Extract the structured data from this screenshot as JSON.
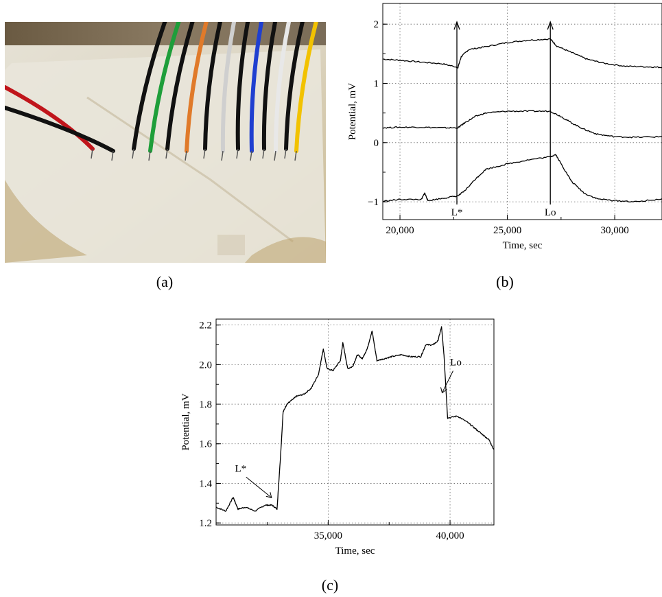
{
  "panels": {
    "a_label": "(a)",
    "b_label": "(b)",
    "c_label": "(c)"
  },
  "photo": {
    "wire_colors": [
      "#c0151b",
      "#111111",
      "#111111",
      "#1e9e3a",
      "#111111",
      "#e07a2a",
      "#111111",
      "#cfcfcf",
      "#111111",
      "#1f3fd0",
      "#111111",
      "#e8e8e8",
      "#111111",
      "#f2c200"
    ]
  },
  "chart_data": [
    {
      "type": "line",
      "panel": "b",
      "title": "",
      "xlabel": "Time, sec",
      "ylabel": "Potential, mV",
      "xlim": [
        19200,
        32200
      ],
      "ylim": [
        -1.3,
        2.35
      ],
      "xticks": [
        20000,
        25000,
        30000
      ],
      "xtick_labels": [
        "20,000",
        "25,000",
        "30,000"
      ],
      "yticks": [
        -1,
        0,
        1,
        2
      ],
      "ytick_labels": [
        "−1",
        "0",
        "1",
        "2"
      ],
      "grid": true,
      "series": [
        {
          "x": [
            19200,
            20000,
            21000,
            22000,
            22700,
            22850,
            23200,
            24000,
            25000,
            26000,
            27000,
            27300,
            28000,
            28700,
            29500,
            30500,
            31500,
            32200
          ],
          "y": [
            1.41,
            1.39,
            1.36,
            1.33,
            1.27,
            1.45,
            1.57,
            1.62,
            1.69,
            1.73,
            1.75,
            1.63,
            1.52,
            1.41,
            1.34,
            1.29,
            1.28,
            1.27
          ]
        },
        {
          "x": [
            19200,
            20000,
            21000,
            22000,
            22700,
            23000,
            23500,
            24000,
            25000,
            26000,
            27000,
            27500,
            28000,
            28600,
            29200,
            30000,
            31000,
            32200
          ],
          "y": [
            0.25,
            0.26,
            0.26,
            0.25,
            0.25,
            0.33,
            0.44,
            0.5,
            0.53,
            0.53,
            0.53,
            0.44,
            0.33,
            0.22,
            0.14,
            0.1,
            0.09,
            0.1
          ]
        },
        {
          "x": [
            19200,
            20000,
            21000,
            21150,
            21300,
            22000,
            22700,
            23000,
            23500,
            24000,
            25000,
            26000,
            27000,
            27250,
            27600,
            28000,
            28600,
            29200,
            30000,
            31000,
            32200
          ],
          "y": [
            -0.99,
            -0.96,
            -0.96,
            -0.85,
            -0.98,
            -0.94,
            -0.9,
            -0.82,
            -0.62,
            -0.45,
            -0.36,
            -0.29,
            -0.24,
            -0.2,
            -0.42,
            -0.66,
            -0.86,
            -0.95,
            -0.98,
            -1.0,
            -0.95
          ]
        }
      ],
      "markers": [
        {
          "label": "L*",
          "x": 22650
        },
        {
          "label": "Lo",
          "x": 27000
        }
      ]
    },
    {
      "type": "line",
      "panel": "c",
      "title": "",
      "xlabel": "Time, sec",
      "ylabel": "Potential, mV",
      "xlim": [
        30400,
        41800
      ],
      "ylim": [
        1.19,
        2.23
      ],
      "xticks": [
        35000,
        40000
      ],
      "xtick_labels": [
        "35,000",
        "40,000"
      ],
      "yticks": [
        1.2,
        1.4,
        1.6,
        1.8,
        2.0,
        2.2
      ],
      "ytick_labels": [
        "1.2",
        "1.4",
        "1.6",
        "1.8",
        "2.0",
        "2.2"
      ],
      "grid": true,
      "series": [
        {
          "x": [
            30400,
            30800,
            31100,
            31300,
            31600,
            32000,
            32400,
            32700,
            32900,
            33050,
            33150,
            33300,
            33500,
            33700,
            34000,
            34300,
            34600,
            34800,
            34950,
            35200,
            35500,
            35600,
            35800,
            36000,
            36200,
            36400,
            36600,
            36800,
            37000,
            37300,
            37600,
            38000,
            38400,
            38800,
            39000,
            39300,
            39500,
            39650,
            39750,
            39900,
            40300,
            40700,
            41000,
            41300,
            41600,
            41800
          ],
          "y": [
            1.28,
            1.26,
            1.33,
            1.27,
            1.28,
            1.26,
            1.29,
            1.29,
            1.27,
            1.55,
            1.76,
            1.8,
            1.82,
            1.84,
            1.85,
            1.88,
            1.95,
            2.08,
            1.98,
            1.97,
            2.02,
            2.11,
            1.98,
            1.99,
            2.05,
            2.03,
            2.08,
            2.17,
            2.02,
            2.03,
            2.04,
            2.05,
            2.04,
            2.04,
            2.1,
            2.1,
            2.12,
            2.19,
            2.05,
            1.73,
            1.74,
            1.71,
            1.68,
            1.65,
            1.62,
            1.57
          ]
        }
      ],
      "annotations": [
        {
          "label": "L*",
          "x": 32900,
          "y": 1.3
        },
        {
          "label": "Lo",
          "x": 39900,
          "y": 1.83
        }
      ]
    }
  ]
}
